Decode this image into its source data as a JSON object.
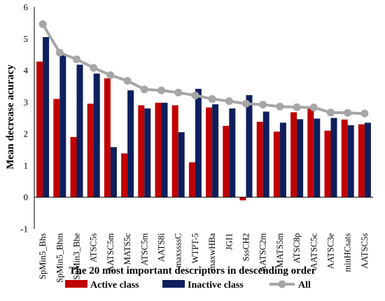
{
  "chart_data": {
    "type": "bar",
    "title": "",
    "xlabel": "The 20 most important descriptors in descending order",
    "ylabel": "Mean decrease acuracy",
    "ylim": [
      -1,
      6
    ],
    "yticks": [
      -1,
      0,
      1,
      2,
      3,
      4,
      5,
      6
    ],
    "grid": false,
    "legend_position": "bottom",
    "categories": [
      "SpMin5_Bhs",
      "SpMin5_Bhm",
      "SpMin3_Bhe",
      "ATSC5s",
      "AATSC5m",
      "MATS5c",
      "ATSC5m",
      "AATS8i",
      "maxssssC",
      "WTPT-5",
      "maxwHBa",
      "JGI1",
      "SssCH2",
      "AATSC2m",
      "MATS5m",
      "ATSC8p",
      "AATSC5c",
      "AATSC3e",
      "minHCsats",
      "AATSC5s"
    ],
    "series": [
      {
        "name": "Active class",
        "kind": "bar",
        "color": "#c00000",
        "values": [
          4.28,
          3.1,
          1.9,
          2.95,
          3.75,
          1.38,
          2.9,
          2.98,
          2.9,
          1.1,
          2.83,
          2.25,
          -0.1,
          2.38,
          2.07,
          2.68,
          2.8,
          2.1,
          2.45,
          2.3
        ]
      },
      {
        "name": "Inactive class",
        "kind": "bar",
        "color": "#0d1f5c",
        "values": [
          5.05,
          4.5,
          4.18,
          3.9,
          1.58,
          3.37,
          2.8,
          2.98,
          2.05,
          3.42,
          2.93,
          2.8,
          3.22,
          2.7,
          2.35,
          2.46,
          2.48,
          2.5,
          2.27,
          2.35
        ]
      },
      {
        "name": "All",
        "kind": "line",
        "color": "#a6a6a6",
        "values": [
          5.46,
          4.56,
          4.35,
          4.08,
          3.85,
          3.67,
          3.4,
          3.37,
          3.3,
          3.21,
          3.1,
          3.03,
          2.95,
          2.92,
          2.86,
          2.84,
          2.83,
          2.67,
          2.66,
          2.64
        ]
      }
    ]
  }
}
